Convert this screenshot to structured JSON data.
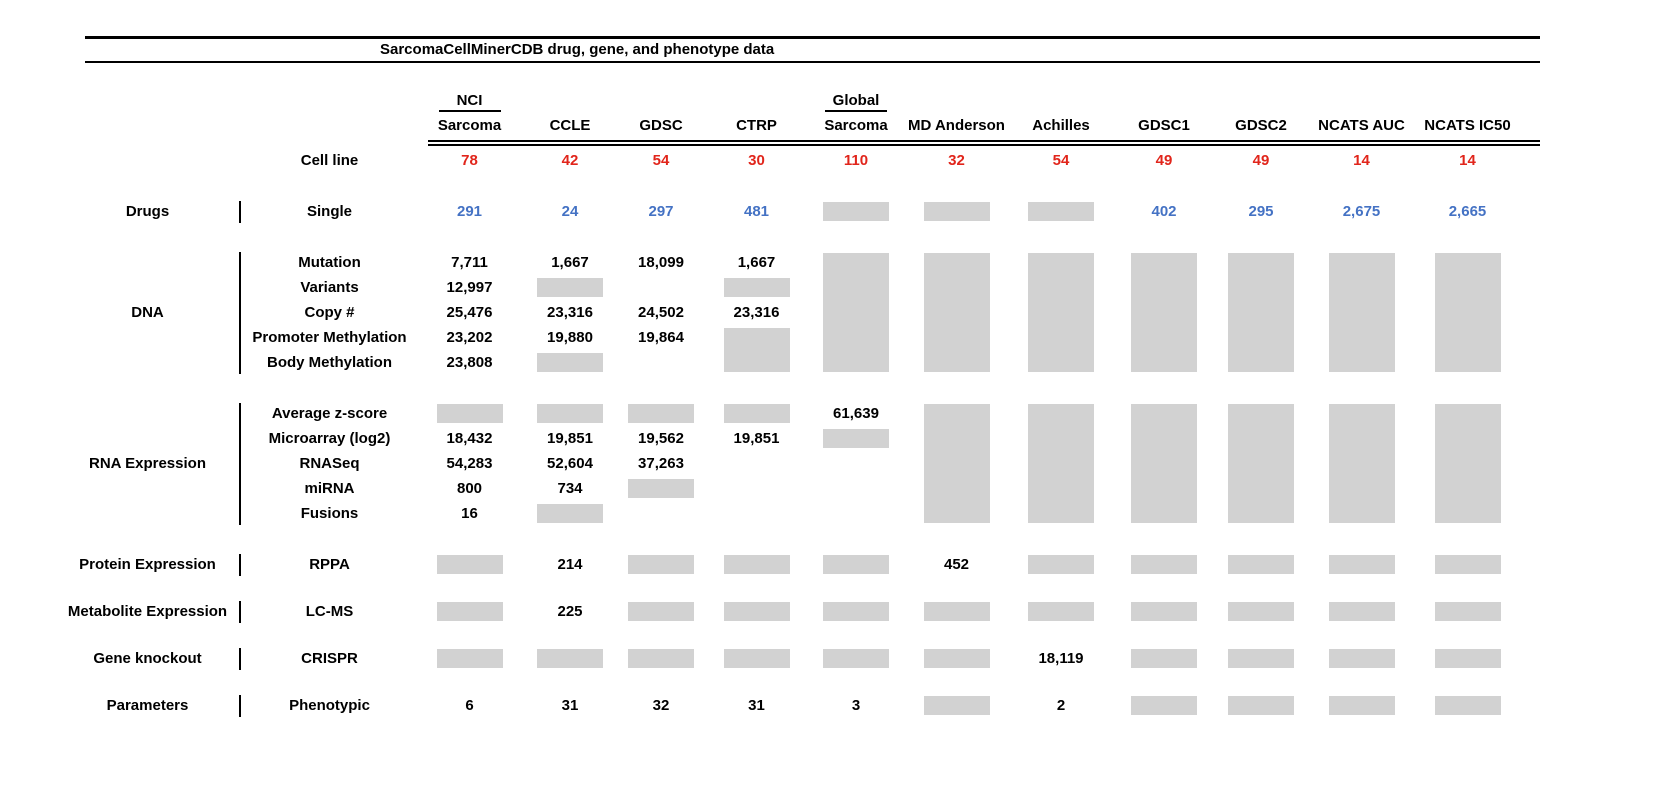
{
  "title": "SarcomaCellMinerCDB drug, gene, and phenotype data",
  "colors": {
    "red": "#e1251b",
    "blue": "#4472c4",
    "gray": "#d2d2d2"
  },
  "columns": [
    {
      "top": "NCI",
      "label": "Sarcoma"
    },
    {
      "top": "",
      "label": "CCLE"
    },
    {
      "top": "",
      "label": "GDSC"
    },
    {
      "top": "",
      "label": "CTRP"
    },
    {
      "top": "Global",
      "label": "Sarcoma"
    },
    {
      "top": "",
      "label": "MD Anderson"
    },
    {
      "top": "",
      "label": "Achilles"
    },
    {
      "top": "",
      "label": "GDSC1"
    },
    {
      "top": "",
      "label": "GDSC2"
    },
    {
      "top": "",
      "label": "NCATS AUC"
    },
    {
      "top": "",
      "label": "NCATS IC50"
    }
  ],
  "cell_line": {
    "label": "Cell line",
    "values": [
      "78",
      "42",
      "54",
      "30",
      "110",
      "32",
      "54",
      "49",
      "49",
      "14",
      "14"
    ]
  },
  "gray_token_meaning": "G = data not available (gray block); G:n = gray block spanning n rows; empty string = blank cell",
  "sections": [
    {
      "category": "Drugs",
      "value_color": "blue",
      "rows": [
        {
          "label": "Single",
          "cells": [
            "291",
            "24",
            "297",
            "481",
            "G",
            "G",
            "G",
            "402",
            "295",
            "2,675",
            "2,665"
          ]
        }
      ]
    },
    {
      "category": "DNA",
      "rows": [
        {
          "label": "Mutation",
          "cells": [
            "7,711",
            "1,667",
            "18,099",
            "1,667",
            "G:5",
            "G:5",
            "G:5",
            "G:5",
            "G:5",
            "G:5",
            "G:5"
          ]
        },
        {
          "label": "Variants",
          "cells": [
            "12,997",
            "G",
            "",
            "G",
            "",
            "",
            "",
            "",
            "",
            "",
            ""
          ]
        },
        {
          "label": "Copy #",
          "cells": [
            "25,476",
            "23,316",
            "24,502",
            "23,316",
            "",
            "",
            "",
            "",
            "",
            "",
            ""
          ]
        },
        {
          "label": "Promoter Methylation",
          "cells": [
            "23,202",
            "19,880",
            "19,864",
            "G:2",
            "",
            "",
            "",
            "",
            "",
            "",
            ""
          ]
        },
        {
          "label": "Body Methylation",
          "cells": [
            "23,808",
            "G",
            "",
            "",
            "",
            "",
            "",
            "",
            "",
            "",
            ""
          ]
        }
      ]
    },
    {
      "category": "RNA Expression",
      "rows": [
        {
          "label": "Average z-score",
          "cells": [
            "G",
            "G",
            "G",
            "G",
            "61,639",
            "G:5",
            "G:5",
            "G:5",
            "G:5",
            "G:5",
            "G:5"
          ]
        },
        {
          "label": "Microarray (log2)",
          "cells": [
            "18,432",
            "19,851",
            "19,562",
            "19,851",
            "G",
            "",
            "",
            "",
            "",
            "",
            ""
          ]
        },
        {
          "label": "RNASeq",
          "cells": [
            "54,283",
            "52,604",
            "37,263",
            "",
            "",
            "",
            "",
            "",
            "",
            "",
            ""
          ]
        },
        {
          "label": "miRNA",
          "cells": [
            "800",
            "734",
            "G",
            "",
            "",
            "",
            "",
            "",
            "",
            "",
            ""
          ]
        },
        {
          "label": "Fusions",
          "cells": [
            "16",
            "G",
            "",
            "",
            "",
            "",
            "",
            "",
            "",
            "",
            ""
          ]
        }
      ]
    },
    {
      "category": "Protein Expression",
      "rows": [
        {
          "label": "RPPA",
          "cells": [
            "G",
            "214",
            "G",
            "G",
            "G",
            "452",
            "G",
            "G",
            "G",
            "G",
            "G"
          ]
        }
      ]
    },
    {
      "category": "Metabolite Expression",
      "rows": [
        {
          "label": "LC-MS",
          "cells": [
            "G",
            "225",
            "G",
            "G",
            "G",
            "G",
            "G",
            "G",
            "G",
            "G",
            "G"
          ]
        }
      ]
    },
    {
      "category": "Gene knockout",
      "rows": [
        {
          "label": "CRISPR",
          "cells": [
            "G",
            "G",
            "G",
            "G",
            "G",
            "G",
            "18,119",
            "G",
            "G",
            "G",
            "G"
          ]
        }
      ]
    },
    {
      "category": "Parameters",
      "rows": [
        {
          "label": "Phenotypic",
          "cells": [
            "6",
            "31",
            "32",
            "31",
            "3",
            "G",
            "2",
            "G",
            "G",
            "G",
            "G"
          ]
        }
      ]
    }
  ]
}
